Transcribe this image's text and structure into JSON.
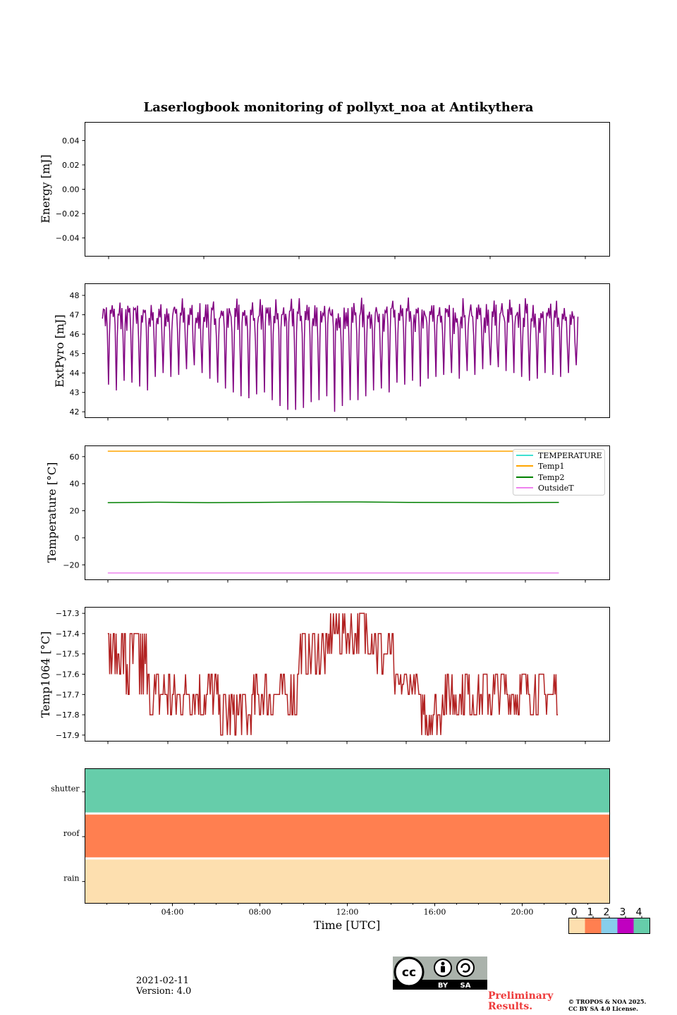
{
  "title": "Laserlogbook monitoring of pollyxt_noa at Antikythera",
  "xlabel": "Time [UTC]",
  "colors": {
    "extpyro": "#800080",
    "temperature": "#40e0d0",
    "temp1": "#ffa500",
    "temp2": "#008000",
    "outsidet": "#ee82ee",
    "temp1064": "#b22222",
    "status": [
      "#fddfaf",
      "#ff7f50",
      "#87ceeb",
      "#c000c0",
      "#66cdaa"
    ]
  },
  "chart_data": [
    {
      "type": "line",
      "name": "energy",
      "ylabel": "Energy [mJ]",
      "ylim": [
        -0.055,
        0.055
      ],
      "yticks": [
        "0.04",
        "0.02",
        "0.00",
        "−0.02",
        "−0.04"
      ],
      "ytick_values": [
        0.04,
        0.02,
        0.0,
        -0.02,
        -0.04
      ],
      "series": []
    },
    {
      "type": "line",
      "name": "extpyro",
      "ylabel": "ExtPyro [mJ]",
      "ylim": [
        41.7,
        48.6
      ],
      "yticks": [
        "48",
        "47",
        "46",
        "45",
        "44",
        "43",
        "42"
      ],
      "ytick_values": [
        48,
        47,
        46,
        45,
        44,
        43,
        42
      ],
      "x_range_hours": [
        0.8,
        22.55
      ],
      "pattern": "oscillating, ~80 cycles, baseline ~46.8, dips to 42-45",
      "dip_minima": [
        43.4,
        43.1,
        43.6,
        43.5,
        43.3,
        43.1,
        43.8,
        44.0,
        43.8,
        43.9,
        44.2,
        44.4,
        44.0,
        43.7,
        43.5,
        43.2,
        43.0,
        42.8,
        42.7,
        42.9,
        43.0,
        42.6,
        42.3,
        42.1,
        42.1,
        42.2,
        42.5,
        42.6,
        42.8,
        42.0,
        42.3,
        42.6,
        42.6,
        42.8,
        43.1,
        43.2,
        43.0,
        43.5,
        43.4,
        43.6,
        43.3,
        43.7,
        43.8,
        43.9,
        44.0,
        43.7,
        44.1,
        43.9,
        44.2,
        44.4,
        44.3,
        44.1,
        44.0,
        43.8,
        43.6,
        43.7,
        44.0,
        43.9,
        43.8,
        44.0,
        44.4
      ]
    },
    {
      "type": "line",
      "name": "temperature",
      "ylabel": "Temperature [°C]",
      "ylim": [
        -31,
        68
      ],
      "yticks": [
        "60",
        "40",
        "20",
        "0",
        "−20"
      ],
      "ytick_values": [
        60,
        40,
        20,
        0,
        -20
      ],
      "x_range_hours": [
        0.8,
        22.55
      ],
      "series": [
        {
          "name": "TEMPERATURE",
          "values": []
        },
        {
          "name": "Temp1",
          "values": [
            64,
            64
          ]
        },
        {
          "name": "Temp2",
          "values": [
            26,
            26.3,
            26,
            26.2,
            26.4,
            26.5,
            26.2,
            26.1,
            26.0,
            26.2
          ]
        },
        {
          "name": "OutsideT",
          "values": [
            -26,
            -26
          ]
        }
      ],
      "legend": "top-right"
    },
    {
      "type": "line",
      "name": "temp1064",
      "ylabel": "Temp1064 [°C]",
      "ylim": [
        -17.93,
        -17.27
      ],
      "yticks": [
        "−17.3",
        "−17.4",
        "−17.5",
        "−17.6",
        "−17.7",
        "−17.8",
        "−17.9"
      ],
      "ytick_values": [
        -17.3,
        -17.4,
        -17.5,
        -17.6,
        -17.7,
        -17.8,
        -17.9
      ],
      "x_range_hours": [
        0.8,
        22.55
      ],
      "levels": [
        {
          "from_h": 0.8,
          "to_h": 1.6,
          "low": -17.6,
          "high": -17.4
        },
        {
          "from_h": 1.6,
          "to_h": 2.7,
          "low": -17.7,
          "high": -17.4
        },
        {
          "from_h": 2.7,
          "to_h": 5.0,
          "low": -17.8,
          "high": -17.6
        },
        {
          "from_h": 5.0,
          "to_h": 6.2,
          "low": -17.8,
          "high": -17.6
        },
        {
          "from_h": 6.2,
          "to_h": 7.8,
          "low": -17.9,
          "high": -17.7
        },
        {
          "from_h": 7.8,
          "to_h": 10.0,
          "low": -17.8,
          "high": -17.6
        },
        {
          "from_h": 10.0,
          "to_h": 11.5,
          "low": -17.6,
          "high": -17.4
        },
        {
          "from_h": 11.5,
          "to_h": 13.8,
          "low": -17.5,
          "high": -17.3
        },
        {
          "from_h": 13.8,
          "to_h": 14.6,
          "low": -17.6,
          "high": -17.4
        },
        {
          "from_h": 14.6,
          "to_h": 15.8,
          "low": -17.7,
          "high": -17.6
        },
        {
          "from_h": 15.8,
          "to_h": 16.9,
          "low": -17.9,
          "high": -17.7
        },
        {
          "from_h": 16.9,
          "to_h": 22.55,
          "low": -17.8,
          "high": -17.6
        }
      ]
    },
    {
      "type": "heatmap",
      "name": "status",
      "rows": [
        "shutter",
        "roof",
        "rain"
      ],
      "row_values": [
        4,
        1,
        0
      ],
      "xticks": [
        "04:00",
        "08:00",
        "12:00",
        "16:00",
        "20:00"
      ],
      "xtick_hours": [
        4,
        8,
        12,
        16,
        20
      ],
      "xlim_hours": [
        0,
        24
      ],
      "colorbar_ticks": [
        "0",
        "1",
        "2",
        "3",
        "4"
      ]
    }
  ],
  "footer": {
    "date": "2021-02-11",
    "version": "Version: 4.0",
    "preliminary_1": "Preliminary",
    "preliminary_2": "Results.",
    "copyright_1": "© TROPOS & NOA 2025.",
    "copyright_2": "CC BY SA 4.0 License."
  },
  "license_badge": {
    "by": "BY",
    "sa": "SA"
  }
}
